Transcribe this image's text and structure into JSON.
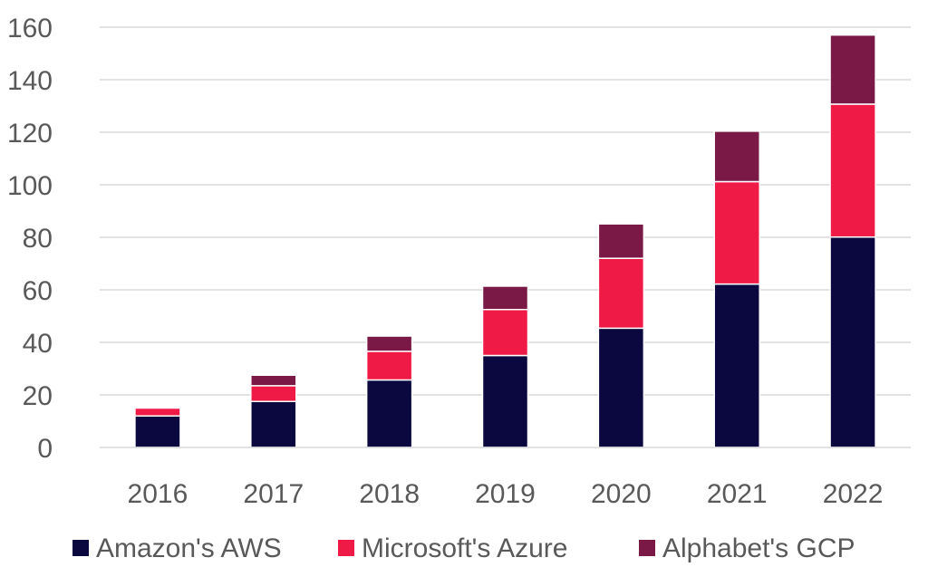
{
  "chart_data": {
    "type": "bar",
    "stacked": true,
    "title": "",
    "xlabel": "",
    "ylabel": "",
    "categories": [
      "2016",
      "2017",
      "2018",
      "2019",
      "2020",
      "2021",
      "2022"
    ],
    "ylim": [
      0,
      160
    ],
    "yticks": [
      "0",
      "20",
      "40",
      "60",
      "80",
      "100",
      "120",
      "140",
      "160"
    ],
    "grid": true,
    "legend_position": "bottom",
    "series": [
      {
        "name": "Amazon's AWS",
        "color": "#0b0840",
        "values": [
          12,
          17.5,
          25.7,
          35,
          45.4,
          62.2,
          80.1
        ]
      },
      {
        "name": "Microsoft's Azure",
        "color": "#f01a47",
        "values": [
          3,
          6,
          10.9,
          17.5,
          26.6,
          39,
          50.6
        ]
      },
      {
        "name": "Alphabet's GCP",
        "color": "#7a1846",
        "values": [
          0,
          4,
          5.8,
          8.9,
          13.1,
          19.2,
          26.3
        ]
      }
    ]
  }
}
